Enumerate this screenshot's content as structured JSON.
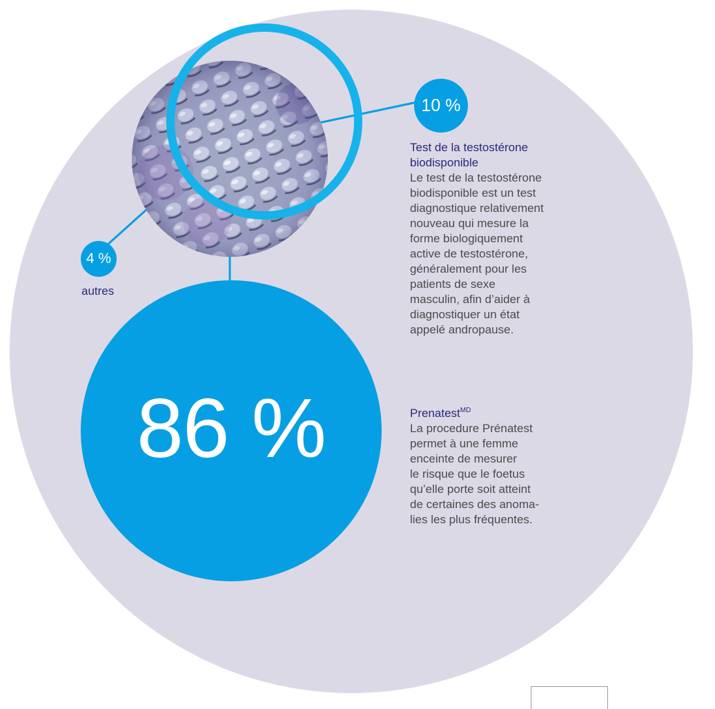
{
  "big_segment": {
    "value": "86 %"
  },
  "badge_ten": {
    "value": "10 %"
  },
  "badge_four": {
    "value": "4 %",
    "label": "autres"
  },
  "testosterone": {
    "title": "Test de la testostérone biodisponible",
    "body": "Le test de la testostérone\nbiodisponible est un test\ndiagnostique relativement\nnouveau qui mesure la\nforme biologiquement\nactive de testostérone,\ngénéralement pour les\npatients de sexe\nmasculin, afin d’aider à\ndiagnostiquer un état\nappelé andropause."
  },
  "prenatest": {
    "title": "Prenatest",
    "title_sup": "MD",
    "body": "La procedure Prénatest\npermet à une femme\nenceinte de mesurer\nle risque que le foetus\nqu’elle porte soit atteint\nde certaines des anoma-\nlies les plus fréquentes."
  },
  "colors": {
    "background_disc": "#dcd9e7",
    "accent_blue": "#069fe3",
    "heading_navy": "#2a2878",
    "body_text": "#4a4a4a"
  }
}
